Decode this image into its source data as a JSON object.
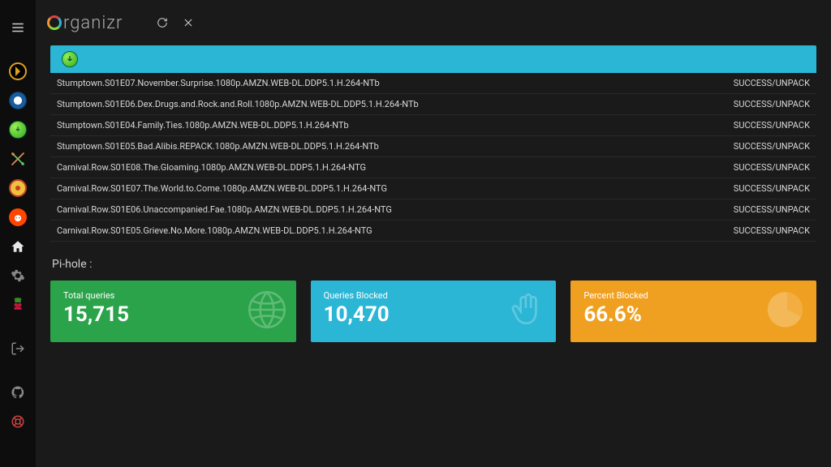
{
  "header": {
    "brand_text": "rganizr"
  },
  "sidebar": {
    "items": [
      {
        "name": "menu"
      },
      {
        "name": "plex"
      },
      {
        "name": "sonarr"
      },
      {
        "name": "nzbget"
      },
      {
        "name": "tools-crossed"
      },
      {
        "name": "radarr"
      },
      {
        "name": "reddit"
      },
      {
        "name": "home"
      },
      {
        "name": "settings-gear"
      },
      {
        "name": "raspberry-pi"
      },
      {
        "name": "signout"
      },
      {
        "name": "github"
      },
      {
        "name": "donate-lifering"
      }
    ]
  },
  "downloads": {
    "rows": [
      {
        "name": "Stumptown.S01E07.November.Surprise.1080p.AMZN.WEB-DL.DDP5.1.H.264-NTb",
        "status": "SUCCESS/UNPACK"
      },
      {
        "name": "Stumptown.S01E06.Dex.Drugs.and.Rock.and.Roll.1080p.AMZN.WEB-DL.DDP5.1.H.264-NTb",
        "status": "SUCCESS/UNPACK"
      },
      {
        "name": "Stumptown.S01E04.Family.Ties.1080p.AMZN.WEB-DL.DDP5.1.H.264-NTb",
        "status": "SUCCESS/UNPACK"
      },
      {
        "name": "Stumptown.S01E05.Bad.Alibis.REPACK.1080p.AMZN.WEB-DL.DDP5.1.H.264-NTb",
        "status": "SUCCESS/UNPACK"
      },
      {
        "name": "Carnival.Row.S01E08.The.Gloaming.1080p.AMZN.WEB-DL.DDP5.1.H.264-NTG",
        "status": "SUCCESS/UNPACK"
      },
      {
        "name": "Carnival.Row.S01E07.The.World.to.Come.1080p.AMZN.WEB-DL.DDP5.1.H.264-NTG",
        "status": "SUCCESS/UNPACK"
      },
      {
        "name": "Carnival.Row.S01E06.Unaccompanied.Fae.1080p.AMZN.WEB-DL.DDP5.1.H.264-NTG",
        "status": "SUCCESS/UNPACK"
      },
      {
        "name": "Carnival.Row.S01E05.Grieve.No.More.1080p.AMZN.WEB-DL.DDP5.1.H.264-NTG",
        "status": "SUCCESS/UNPACK"
      }
    ]
  },
  "pihole": {
    "title": "Pi-hole :",
    "cards": [
      {
        "label": "Total queries",
        "value": "15,715",
        "color": "green",
        "icon": "globe"
      },
      {
        "label": "Queries Blocked",
        "value": "10,470",
        "color": "blue",
        "icon": "hand"
      },
      {
        "label": "Percent Blocked",
        "value": "66.6%",
        "color": "orange",
        "icon": "piechart"
      }
    ]
  },
  "styling": {
    "background": "#1a1a1a",
    "sidebar_bg": "#0d0d0d",
    "banner_bg": "#2bb6d6",
    "row_border": "#2a2a2a",
    "text_primary": "#e0e0e0",
    "row_font_size": 11,
    "card_value_font_size": 26,
    "card_colors": {
      "green": "#2aa34a",
      "blue": "#2bb6d6",
      "orange": "#f0a020"
    }
  }
}
